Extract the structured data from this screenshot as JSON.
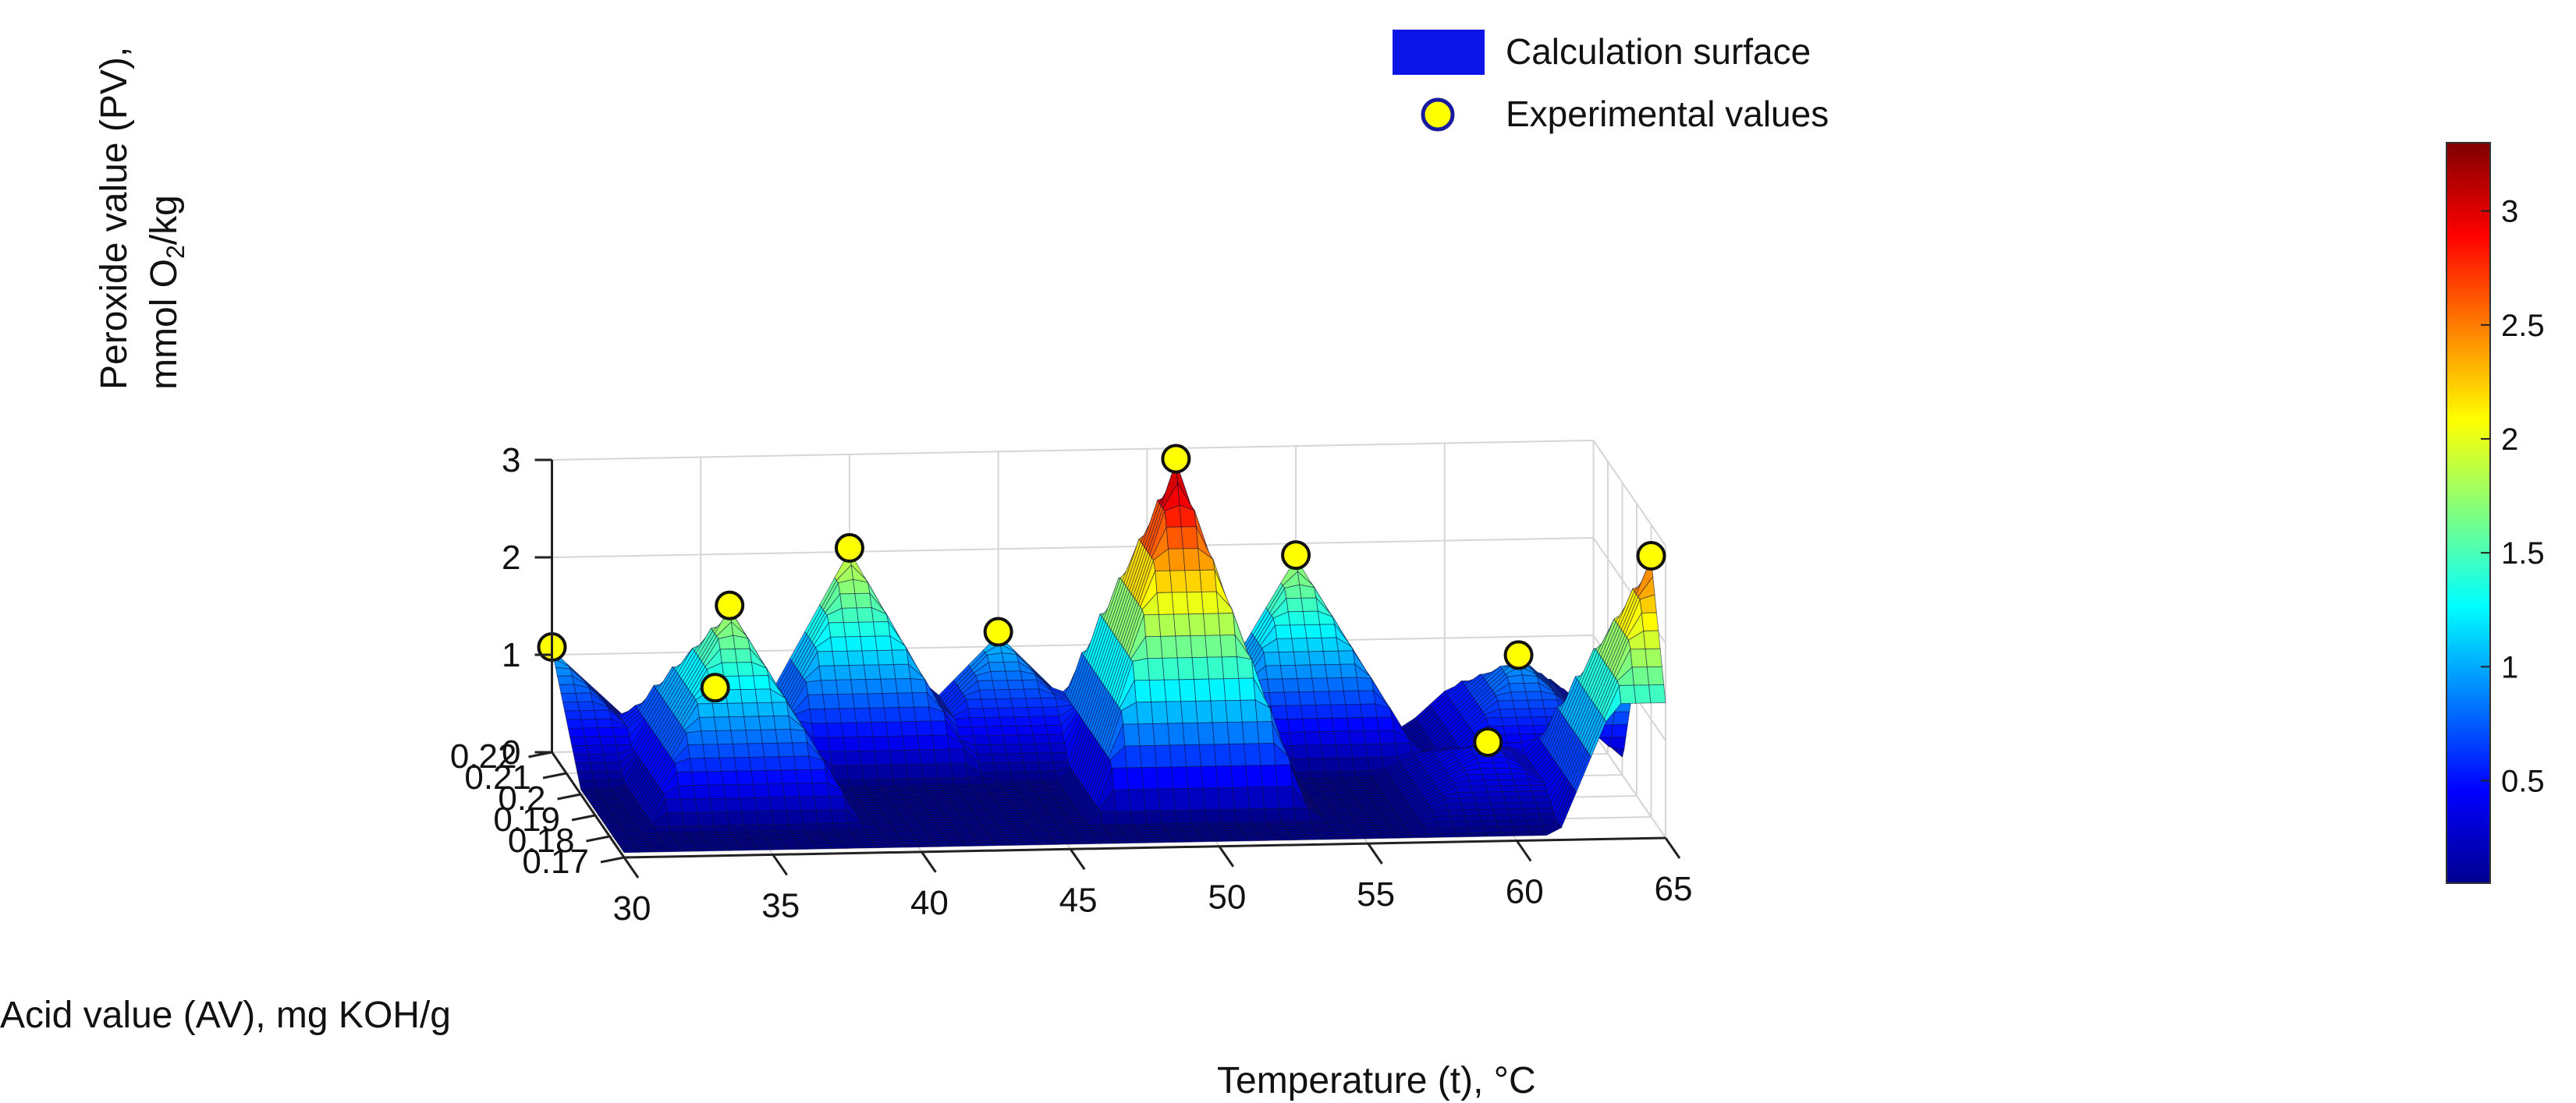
{
  "chart_data": {
    "type": "surface3d",
    "title": "",
    "xlabel": "Temperature (t), °C",
    "ylabel": "Acid value (AV), mg KOH/g",
    "zlabel_line1": "Peroxide value (PV),",
    "zlabel_line2_prefix": "mmol O",
    "zlabel_line2_sub": "2",
    "zlabel_line2_suffix": "/kg",
    "x_ticks": [
      "30",
      "35",
      "40",
      "45",
      "50",
      "55",
      "60",
      "65"
    ],
    "y_ticks": [
      "0.17",
      "0.18",
      "0.19",
      "0.2",
      "0.21",
      "0.22"
    ],
    "z_ticks": [
      "0",
      "1",
      "2",
      "3"
    ],
    "xlim": [
      30,
      65
    ],
    "ylim": [
      0.17,
      0.22
    ],
    "zlim": [
      0,
      3
    ],
    "colorbar": {
      "ticks": [
        "0.5",
        "1",
        "1.5",
        "2",
        "2.5",
        "3"
      ],
      "range": [
        0.05,
        3.3
      ],
      "colormap": "jet"
    },
    "legend": {
      "position": "top",
      "items": [
        {
          "label": "Calculation surface",
          "color": "#0a14e6"
        },
        {
          "label": "Experimental values",
          "color": "#ffff00",
          "edge": "#1a1aa0"
        }
      ]
    },
    "experimental_points": [
      {
        "t": 30,
        "av": 0.22,
        "pv": 1.05
      },
      {
        "t": 35,
        "av": 0.21,
        "pv": 0.82
      },
      {
        "t": 35,
        "av": 0.2,
        "pv": 1.88
      },
      {
        "t": 40,
        "av": 0.22,
        "pv": 2.01
      },
      {
        "t": 45,
        "av": 0.22,
        "pv": 1.12
      },
      {
        "t": 50,
        "av": 0.2,
        "pv": 3.3
      },
      {
        "t": 55,
        "av": 0.22,
        "pv": 1.85
      },
      {
        "t": 60,
        "av": 0.19,
        "pv": 0.55
      },
      {
        "t": 62,
        "av": 0.21,
        "pv": 1.0
      },
      {
        "t": 65,
        "av": 0.18,
        "pv": 2.65
      }
    ],
    "grid": true
  }
}
